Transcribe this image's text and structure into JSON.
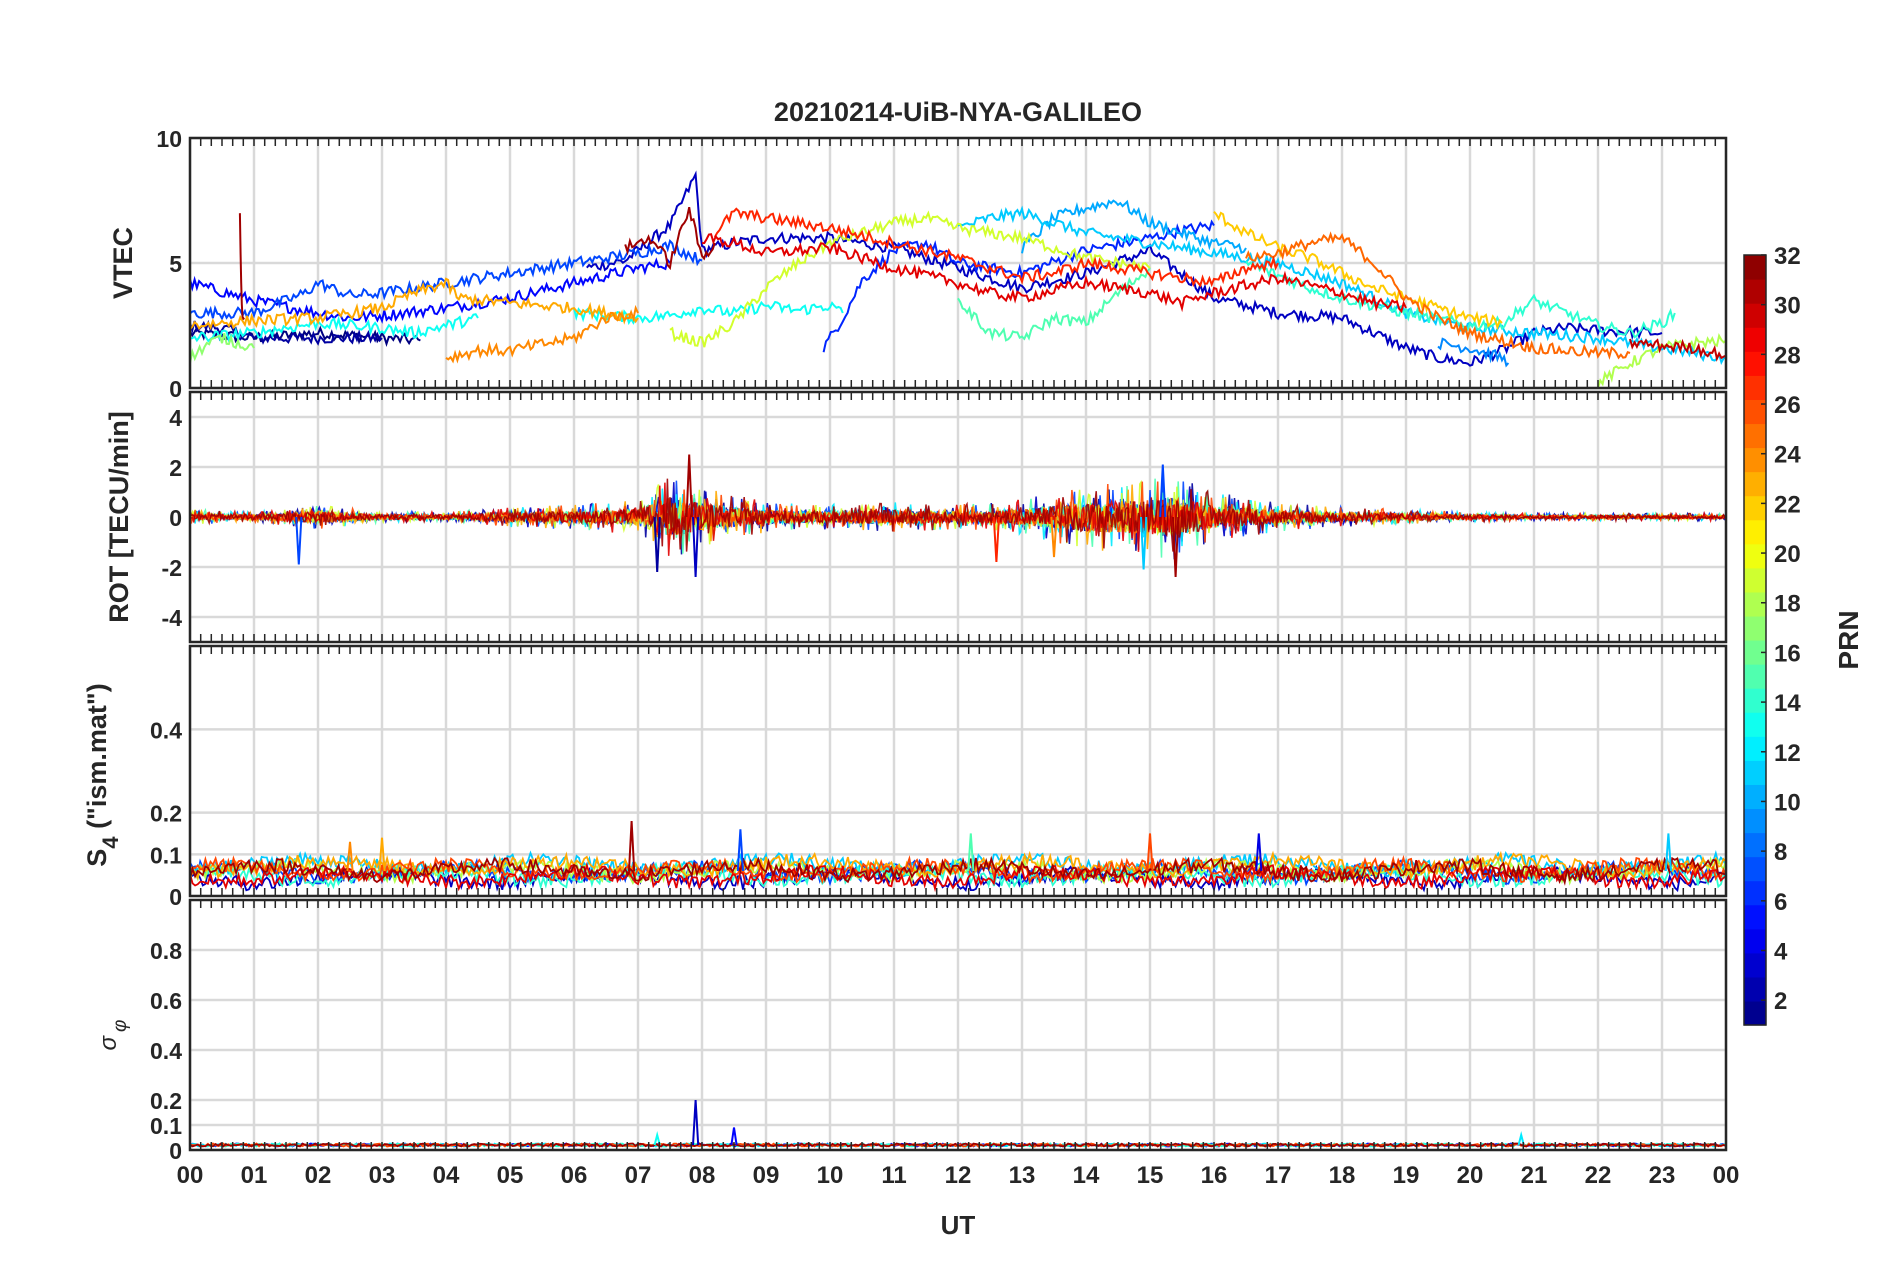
{
  "chart_data": {
    "type": "line",
    "title": "20210214-UiB-NYA-GALILEO",
    "xlabel": "UT",
    "x_ticks": [
      "00",
      "01",
      "02",
      "03",
      "04",
      "05",
      "06",
      "07",
      "08",
      "09",
      "10",
      "11",
      "12",
      "13",
      "14",
      "15",
      "16",
      "17",
      "18",
      "19",
      "20",
      "21",
      "22",
      "23",
      "00"
    ],
    "xlim": [
      0,
      24
    ],
    "grid": true,
    "colorbar": {
      "label": "PRN",
      "range": [
        1,
        32
      ],
      "ticks": [
        "2",
        "4",
        "6",
        "8",
        "10",
        "12",
        "14",
        "16",
        "18",
        "20",
        "22",
        "24",
        "26",
        "28",
        "30",
        "32"
      ],
      "colormap": "jet"
    },
    "panels": [
      {
        "ylabel": "VTEC",
        "ylim": [
          0,
          10
        ],
        "y_ticks": [
          "0",
          "5",
          "10"
        ],
        "series": [
          {
            "prn": 1,
            "x": [
              0,
              1,
              2,
              3,
              3.6
            ],
            "y": [
              2.2,
              2.0,
              2.2,
              2.0,
              1.9
            ]
          },
          {
            "prn": 2,
            "x": [
              0,
              0.5,
              1,
              2,
              3
            ],
            "y": [
              2.5,
              2.4,
              2.0,
              2.0,
              2.0
            ]
          },
          {
            "prn": 3,
            "x": [
              6.2,
              6.8,
              7.5,
              7.9,
              8.0,
              8.5,
              9.0,
              10,
              11,
              12,
              13,
              14,
              15,
              16,
              17,
              18,
              19,
              19.5,
              20,
              20.5,
              21,
              21.5,
              22,
              23
            ],
            "y": [
              4.8,
              5.1,
              6.5,
              8.5,
              5.5,
              5.8,
              6.0,
              6.0,
              5.6,
              4.8,
              4.0,
              4.6,
              5.5,
              3.6,
              3.0,
              2.8,
              1.6,
              1.2,
              1.0,
              1.5,
              2.2,
              2.4,
              2.3,
              2.2
            ]
          },
          {
            "prn": 5,
            "x": [
              0,
              1,
              2,
              2.5,
              3,
              4,
              5,
              6,
              7,
              7.5
            ],
            "y": [
              4.2,
              3.5,
              3.0,
              2.8,
              2.9,
              3.2,
              3.6,
              4.2,
              4.8,
              5.0
            ]
          },
          {
            "prn": 6,
            "x": [
              9.9,
              10.2,
              10.5,
              11,
              11.5,
              12,
              13,
              14,
              15,
              15.5,
              16
            ],
            "y": [
              1.6,
              2.8,
              4.3,
              5.5,
              5.8,
              5.0,
              4.6,
              5.5,
              6.0,
              6.3,
              6.5
            ]
          },
          {
            "prn": 7,
            "x": [
              0,
              1,
              1.8,
              2,
              2.5,
              3,
              4,
              5,
              6,
              7,
              7.5,
              8.0
            ],
            "y": [
              3.0,
              3.0,
              3.8,
              4.2,
              3.7,
              3.8,
              4.2,
              4.6,
              5.0,
              5.4,
              5.7,
              5.1
            ]
          },
          {
            "prn": 9,
            "x": [
              19.5,
              20,
              20.5,
              20.6
            ],
            "y": [
              1.8,
              1.6,
              1.2,
              1.0
            ]
          },
          {
            "prn": 10,
            "x": [
              13,
              13.5,
              14,
              14.5,
              15,
              15.5,
              16,
              16.5
            ],
            "y": [
              5.6,
              6.8,
              7.2,
              7.5,
              6.6,
              6.2,
              5.8,
              5.6
            ]
          },
          {
            "prn": 11,
            "x": [
              12,
              12.5,
              13,
              13.5,
              14,
              15,
              16,
              17,
              18,
              18.5,
              19,
              20,
              21,
              22,
              23,
              24
            ],
            "y": [
              6.4,
              6.8,
              7.0,
              6.6,
              6.2,
              5.8,
              5.4,
              5.0,
              4.2,
              3.6,
              3.0,
              2.4,
              2.2,
              2.0,
              1.6,
              1.2
            ]
          },
          {
            "prn": 13,
            "x": [
              6.0,
              7.0,
              7.5,
              8.0,
              8.5,
              9.0,
              9.5,
              10.0,
              10.2
            ],
            "y": [
              3.0,
              2.8,
              2.9,
              3.2,
              3.0,
              3.3,
              3.1,
              3.3,
              3.0
            ]
          },
          {
            "prn": 13,
            "x": [
              0,
              1,
              2,
              3,
              3.5,
              4,
              4.5
            ],
            "y": [
              2.0,
              2.2,
              2.6,
              2.4,
              2.2,
              2.5,
              2.8
            ]
          },
          {
            "prn": 14,
            "x": [
              16.5,
              17.0,
              17.5,
              18.0,
              19,
              20,
              20.5,
              21,
              22,
              22.5,
              23.0,
              23.2
            ],
            "y": [
              5.0,
              4.5,
              4.0,
              3.6,
              3.0,
              2.5,
              2.6,
              3.5,
              2.5,
              2.2,
              2.6,
              3.0
            ]
          },
          {
            "prn": 15,
            "x": [
              12.0,
              12.5,
              13.0,
              13.5,
              14.0,
              14.5,
              15.0
            ],
            "y": [
              3.5,
              2.2,
              2.0,
              2.8,
              2.6,
              3.8,
              4.8
            ]
          },
          {
            "prn": 17,
            "x": [
              0,
              0.3,
              0.5,
              1.0
            ],
            "y": [
              1.2,
              1.8,
              2.0,
              1.6
            ]
          },
          {
            "prn": 18,
            "x": [
              22.0,
              22.5,
              23,
              23.5,
              24
            ],
            "y": [
              0.2,
              1.0,
              1.6,
              1.8,
              1.9
            ]
          },
          {
            "prn": 19,
            "x": [
              7.5,
              8.0,
              8.5,
              9.0,
              9.5,
              10,
              10.5,
              11,
              11.5,
              12,
              13,
              13.5,
              14,
              14.5,
              15
            ],
            "y": [
              2.2,
              1.8,
              2.6,
              4.0,
              5.0,
              5.8,
              6.2,
              6.6,
              6.8,
              6.4,
              6.0,
              5.6,
              5.2,
              5.0,
              4.8
            ]
          },
          {
            "prn": 22,
            "x": [
              16.0,
              16.5,
              17.0,
              17.5,
              18,
              18.5,
              19,
              19.5,
              20.0,
              20.5
            ],
            "y": [
              7.0,
              6.2,
              5.6,
              5.2,
              4.6,
              4.0,
              3.6,
              3.2,
              2.8,
              2.6
            ]
          },
          {
            "prn": 23,
            "x": [
              0,
              1,
              2,
              3,
              3.5,
              4,
              4.2,
              5,
              6,
              6.5,
              7
            ],
            "y": [
              2.5,
              2.7,
              2.8,
              3.2,
              3.8,
              4.2,
              3.6,
              3.4,
              3.2,
              3.0,
              2.8
            ]
          },
          {
            "prn": 24,
            "x": [
              4.0,
              4.5,
              5,
              6,
              6.5,
              7
            ],
            "y": [
              1.2,
              1.5,
              1.5,
              2.0,
              2.8,
              3.0
            ]
          },
          {
            "prn": 25,
            "x": [
              16.5,
              17,
              17.5,
              18,
              18.5,
              19,
              19.5,
              20,
              21,
              22,
              22.5
            ],
            "y": [
              5.2,
              5.4,
              5.8,
              6.0,
              5.0,
              3.6,
              2.8,
              2.2,
              1.6,
              1.4,
              1.4
            ]
          },
          {
            "prn": 27,
            "x": [
              8.2,
              8.5,
              9,
              10,
              11,
              12,
              12.5,
              13,
              13.5,
              14,
              15,
              16,
              16.5,
              17
            ],
            "y": [
              6.2,
              7.0,
              6.8,
              6.4,
              5.8,
              5.2,
              4.8,
              4.4,
              4.6,
              5.0,
              4.6,
              4.2,
              4.8,
              5.0
            ]
          },
          {
            "prn": 29,
            "x": [
              8.0,
              8.5,
              9,
              10,
              10.5,
              11,
              12,
              12.5,
              13,
              14,
              15,
              15.5,
              16,
              17,
              18,
              18.5,
              19
            ],
            "y": [
              6.0,
              5.8,
              5.4,
              5.6,
              5.2,
              4.8,
              4.2,
              3.8,
              3.6,
              4.2,
              3.8,
              3.4,
              3.8,
              4.4,
              3.8,
              3.4,
              3.2
            ]
          },
          {
            "prn": 30,
            "x": [
              22.5,
              23,
              23.5,
              24
            ],
            "y": [
              1.8,
              1.7,
              1.6,
              1.3
            ]
          },
          {
            "prn": 31,
            "x": [
              0.78,
              0.8,
              0.82,
              0.85
            ],
            "y": [
              6.8,
              4.0,
              3.0,
              2.8
            ]
          },
          {
            "prn": 31,
            "x": [
              6.8,
              7.2,
              7.5,
              7.8,
              8.0,
              8.2
            ],
            "y": [
              5.6,
              6.0,
              5.0,
              7.2,
              5.2,
              5.8
            ]
          }
        ]
      },
      {
        "ylabel": "ROT [TECU/min]",
        "ylim": [
          -5,
          5
        ],
        "y_ticks": [
          "-4",
          "-2",
          "0",
          "2",
          "4"
        ],
        "envelope": {
          "hours": [
            0,
            1,
            2,
            3,
            4,
            5,
            6,
            7,
            7.5,
            8,
            9,
            10,
            11,
            12,
            13,
            13.5,
            14,
            15,
            15.3,
            16,
            17,
            18,
            19,
            20,
            21,
            22,
            23,
            24
          ],
          "amplitude": [
            0.3,
            0.2,
            0.5,
            0.2,
            0.2,
            0.4,
            0.5,
            0.7,
            1.8,
            1.2,
            0.6,
            0.5,
            0.6,
            0.5,
            0.7,
            1.0,
            1.3,
            1.5,
            1.8,
            1.0,
            0.6,
            0.4,
            0.3,
            0.2,
            0.15,
            0.15,
            0.15,
            0.15
          ]
        },
        "spikes": [
          {
            "x": 7.8,
            "y": 2.5,
            "prn": 31
          },
          {
            "x": 7.9,
            "y": -2.4,
            "prn": 3
          },
          {
            "x": 7.3,
            "y": -2.2,
            "prn": 2
          },
          {
            "x": 15.2,
            "y": 2.1,
            "prn": 7
          },
          {
            "x": 15.4,
            "y": -2.4,
            "prn": 31
          },
          {
            "x": 14.9,
            "y": -2.1,
            "prn": 11
          },
          {
            "x": 1.7,
            "y": -1.9,
            "prn": 7
          },
          {
            "x": 12.6,
            "y": -1.8,
            "prn": 27
          },
          {
            "x": 13.5,
            "y": -1.6,
            "prn": 24
          }
        ]
      },
      {
        "ylabel": "S4 (\"ism.mat\")",
        "ylim": [
          0,
          0.6
        ],
        "y_ticks": [
          "0",
          "0.1",
          "0.2",
          "0.4"
        ],
        "baseline": 0.06,
        "spikes": [
          {
            "x": 6.9,
            "y": 0.18,
            "prn": 31
          },
          {
            "x": 8.6,
            "y": 0.16,
            "prn": 7
          },
          {
            "x": 12.2,
            "y": 0.15,
            "prn": 15
          },
          {
            "x": 15.0,
            "y": 0.15,
            "prn": 26
          },
          {
            "x": 16.7,
            "y": 0.15,
            "prn": 4
          },
          {
            "x": 23.1,
            "y": 0.15,
            "prn": 11
          },
          {
            "x": 2.5,
            "y": 0.13,
            "prn": 24
          },
          {
            "x": 3.0,
            "y": 0.14,
            "prn": 23
          }
        ]
      },
      {
        "ylabel": "σφ",
        "ylim": [
          0,
          1
        ],
        "y_ticks": [
          "0",
          "0.1",
          "0.2",
          "0.4",
          "0.6",
          "0.8"
        ],
        "baseline": 0.02,
        "spikes": [
          {
            "x": 7.9,
            "y": 0.2,
            "prn": 3
          },
          {
            "x": 8.5,
            "y": 0.09,
            "prn": 5
          },
          {
            "x": 7.3,
            "y": 0.06,
            "prn": 13
          },
          {
            "x": 20.8,
            "y": 0.06,
            "prn": 12
          }
        ]
      }
    ]
  }
}
